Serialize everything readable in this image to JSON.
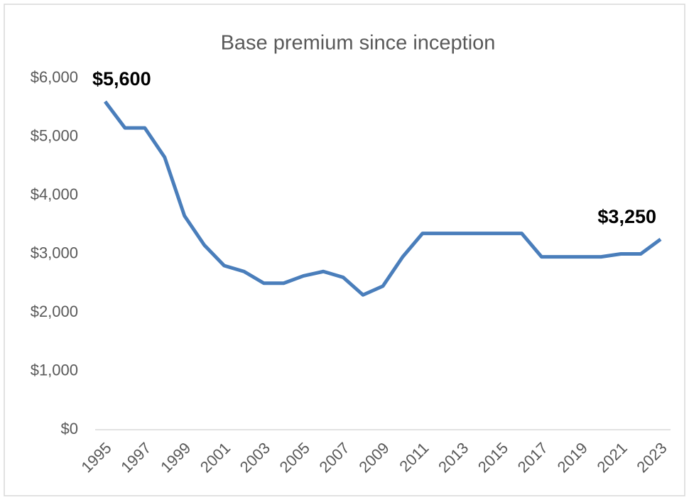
{
  "chart_data": {
    "type": "line",
    "title": "Base premium since inception",
    "x": [
      1995,
      1996,
      1997,
      1998,
      1999,
      2000,
      2001,
      2002,
      2003,
      2004,
      2005,
      2006,
      2007,
      2008,
      2009,
      2010,
      2011,
      2012,
      2013,
      2014,
      2015,
      2016,
      2017,
      2018,
      2019,
      2020,
      2021,
      2022,
      2023
    ],
    "series": [
      {
        "name": "Base premium",
        "color": "#4a7ebb",
        "values": [
          5600,
          5150,
          5150,
          4650,
          3650,
          3150,
          2800,
          2700,
          2500,
          2500,
          2625,
          2700,
          2600,
          2300,
          2450,
          2950,
          3350,
          3350,
          3350,
          3350,
          3350,
          3350,
          2950,
          2950,
          2950,
          2950,
          3000,
          3000,
          3250
        ],
        "value_labels": [
          "$5,600",
          null,
          null,
          null,
          null,
          null,
          null,
          null,
          null,
          null,
          null,
          null,
          null,
          null,
          null,
          null,
          null,
          null,
          null,
          null,
          null,
          null,
          null,
          null,
          null,
          null,
          null,
          null,
          "$3,250"
        ]
      }
    ],
    "xlim": [
      1995,
      2023
    ],
    "xticks": [
      1995,
      1997,
      1999,
      2001,
      2003,
      2005,
      2007,
      2009,
      2011,
      2013,
      2015,
      2017,
      2019,
      2021,
      2023
    ],
    "ylim": [
      0,
      6000
    ],
    "yticks": [
      {
        "value": 0,
        "label": "$0"
      },
      {
        "value": 1000,
        "label": "$1,000"
      },
      {
        "value": 2000,
        "label": "$2,000"
      },
      {
        "value": 3000,
        "label": "$3,000"
      },
      {
        "value": 4000,
        "label": "$4,000"
      },
      {
        "value": 5000,
        "label": "$5,000"
      },
      {
        "value": 6000,
        "label": "$6,000"
      }
    ],
    "grid": false
  }
}
